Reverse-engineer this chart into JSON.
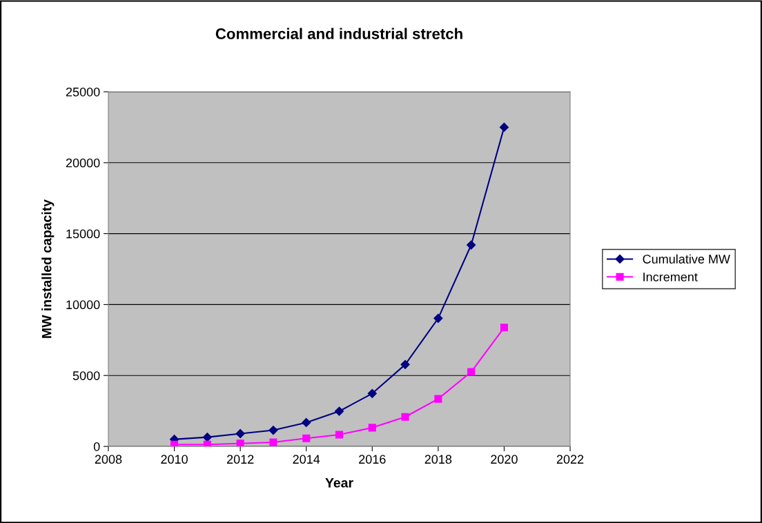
{
  "chart_data": {
    "type": "line",
    "title": "Commercial and industrial stretch",
    "xlabel": "Year",
    "ylabel": "MW installed capacity",
    "x": [
      2010,
      2011,
      2012,
      2013,
      2014,
      2015,
      2016,
      2017,
      2018,
      2019,
      2020
    ],
    "series": [
      {
        "name": "Cumulative MW",
        "color": "#000080",
        "marker": "diamond",
        "values": [
          500,
          650,
          900,
          1140,
          1680,
          2480,
          3730,
          5770,
          9030,
          14200,
          22500
        ]
      },
      {
        "name": "Increment",
        "color": "#ff00ff",
        "marker": "square",
        "values": [
          130,
          130,
          210,
          290,
          570,
          830,
          1320,
          2080,
          3350,
          5250,
          8380
        ]
      }
    ],
    "xlim": [
      2008,
      2022
    ],
    "xticks": [
      2008,
      2010,
      2012,
      2014,
      2016,
      2018,
      2020,
      2022
    ],
    "ylim": [
      0,
      25000
    ],
    "yticks": [
      0,
      5000,
      10000,
      15000,
      20000,
      25000
    ],
    "grid": "y",
    "legend": "right",
    "line_style": "solid"
  }
}
